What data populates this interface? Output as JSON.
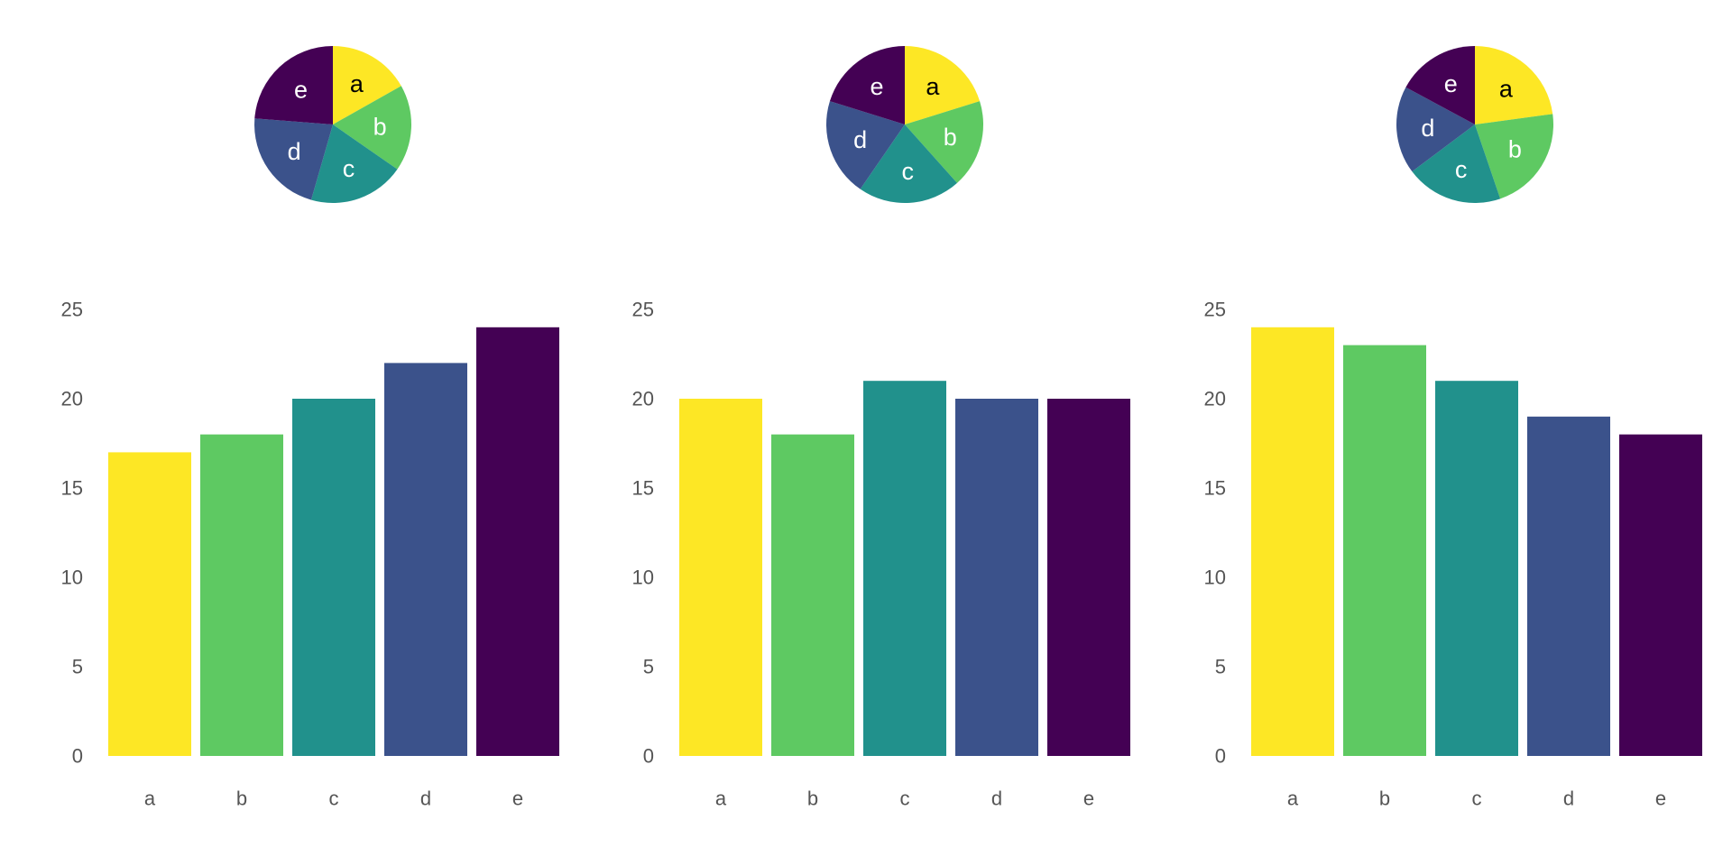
{
  "chart_data": [
    {
      "type": "pie",
      "categories": [
        "a",
        "b",
        "c",
        "d",
        "e"
      ],
      "values": [
        17,
        18,
        20,
        22,
        24
      ],
      "colors": [
        "#fde725",
        "#5ec962",
        "#21918c",
        "#3b528b",
        "#440154"
      ],
      "label_colors": [
        "#000000",
        "#ffffff",
        "#ffffff",
        "#ffffff",
        "#ffffff"
      ],
      "startangle": 90,
      "direction": "clockwise"
    },
    {
      "type": "pie",
      "categories": [
        "a",
        "b",
        "c",
        "d",
        "e"
      ],
      "values": [
        20,
        18,
        21,
        20,
        20
      ],
      "colors": [
        "#fde725",
        "#5ec962",
        "#21918c",
        "#3b528b",
        "#440154"
      ],
      "label_colors": [
        "#000000",
        "#ffffff",
        "#ffffff",
        "#ffffff",
        "#ffffff"
      ],
      "startangle": 90,
      "direction": "clockwise"
    },
    {
      "type": "pie",
      "categories": [
        "a",
        "b",
        "c",
        "d",
        "e"
      ],
      "values": [
        24,
        23,
        21,
        19,
        18
      ],
      "colors": [
        "#fde725",
        "#5ec962",
        "#21918c",
        "#3b528b",
        "#440154"
      ],
      "label_colors": [
        "#000000",
        "#ffffff",
        "#ffffff",
        "#ffffff",
        "#ffffff"
      ],
      "startangle": 90,
      "direction": "clockwise"
    },
    {
      "type": "bar",
      "categories": [
        "a",
        "b",
        "c",
        "d",
        "e"
      ],
      "values": [
        17,
        18,
        20,
        22,
        24
      ],
      "colors": [
        "#fde725",
        "#5ec962",
        "#21918c",
        "#3b528b",
        "#440154"
      ],
      "ylim": [
        0,
        25
      ],
      "yticks": [
        0,
        5,
        10,
        15,
        20,
        25
      ],
      "grid": false
    },
    {
      "type": "bar",
      "categories": [
        "a",
        "b",
        "c",
        "d",
        "e"
      ],
      "values": [
        20,
        18,
        21,
        20,
        20
      ],
      "colors": [
        "#fde725",
        "#5ec962",
        "#21918c",
        "#3b528b",
        "#440154"
      ],
      "ylim": [
        0,
        25
      ],
      "yticks": [
        0,
        5,
        10,
        15,
        20,
        25
      ],
      "grid": false
    },
    {
      "type": "bar",
      "categories": [
        "a",
        "b",
        "c",
        "d",
        "e"
      ],
      "values": [
        24,
        23,
        21,
        19,
        18
      ],
      "colors": [
        "#fde725",
        "#5ec962",
        "#21918c",
        "#3b528b",
        "#440154"
      ],
      "ylim": [
        0,
        25
      ],
      "yticks": [
        0,
        5,
        10,
        15,
        20,
        25
      ],
      "grid": false
    }
  ]
}
